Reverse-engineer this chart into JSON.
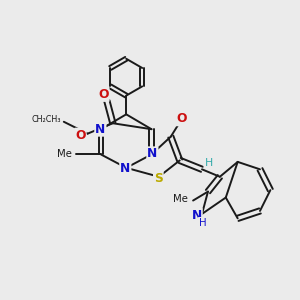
{
  "bg_color": "#ebebeb",
  "line_color": "#1a1a1a",
  "N_color": "#1010cc",
  "O_color": "#cc1010",
  "S_color": "#bbaa00",
  "H_color": "#33aaaa",
  "line_width": 1.4,
  "font_size": 7.8,
  "fig_size": [
    3.0,
    3.0
  ],
  "dpi": 100,
  "xlim": [
    0,
    10
  ],
  "ylim": [
    0,
    10
  ]
}
